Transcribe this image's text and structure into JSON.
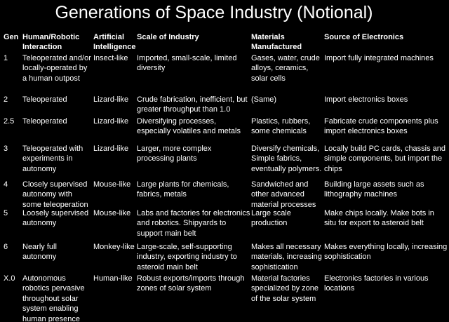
{
  "title": "Generations of Space Industry (Notional)",
  "table": {
    "header": [
      "Gen",
      "Human/Robotic Interaction",
      "Artificial Intelligence",
      "Scale of Industry",
      "Materials Manufactured",
      "Source of Electronics"
    ],
    "rows": [
      [
        "1",
        "Teleoperated and/or locally-operated by a human outpost",
        "Insect-like",
        "Imported, small-scale, limited diversity",
        "Gases, water, crude alloys, ceramics, solar cells",
        "Import fully integrated machines"
      ],
      [
        "2",
        "Teleoperated",
        "Lizard-like",
        "Crude fabrication, inefficient, but greater throughput than 1.0",
        "(Same)",
        "Import electronics boxes"
      ],
      [
        "2.5",
        "Teleoperated",
        "Lizard-like",
        "Diversifying processes, especially volatiles and metals",
        "Plastics, rubbers, some chemicals",
        "Fabricate crude components plus import electronics boxes"
      ],
      [
        "3",
        "Teleoperated with experiments in autonomy",
        "Lizard-like",
        "Larger, more complex processing plants",
        "Diversify chemicals, Simple fabrics, eventually polymers.",
        "Locally build PC cards, chassis and simple components, but import the chips"
      ],
      [
        "4",
        "Closely supervised autonomy with some teleoperation",
        "Mouse-like",
        "Large plants for chemicals, fabrics, metals",
        "Sandwiched and other advanced material processes",
        "Building large assets such as lithography machines"
      ],
      [
        "5",
        "Loosely supervised autonomy",
        "Mouse-like",
        "Labs and factories for electronics and robotics. Shipyards to support main belt",
        "Large scale production",
        "Make chips locally.  Make bots in situ for export to asteroid belt"
      ],
      [
        "6",
        "Nearly full autonomy",
        "Monkey-like",
        "Large-scale, self-supporting industry, exporting industry to asteroid main belt",
        "Makes all necessary materials, increasing sophistication",
        "Makes everything locally, increasing sophistication"
      ],
      [
        "X.0",
        "Autonomous robotics pervasive throughout solar system enabling human presence",
        "Human-like",
        "Robust exports/imports through zones of solar system",
        "Material factories specialized by zone of the solar system",
        "Electronics factories in various locations"
      ]
    ]
  }
}
